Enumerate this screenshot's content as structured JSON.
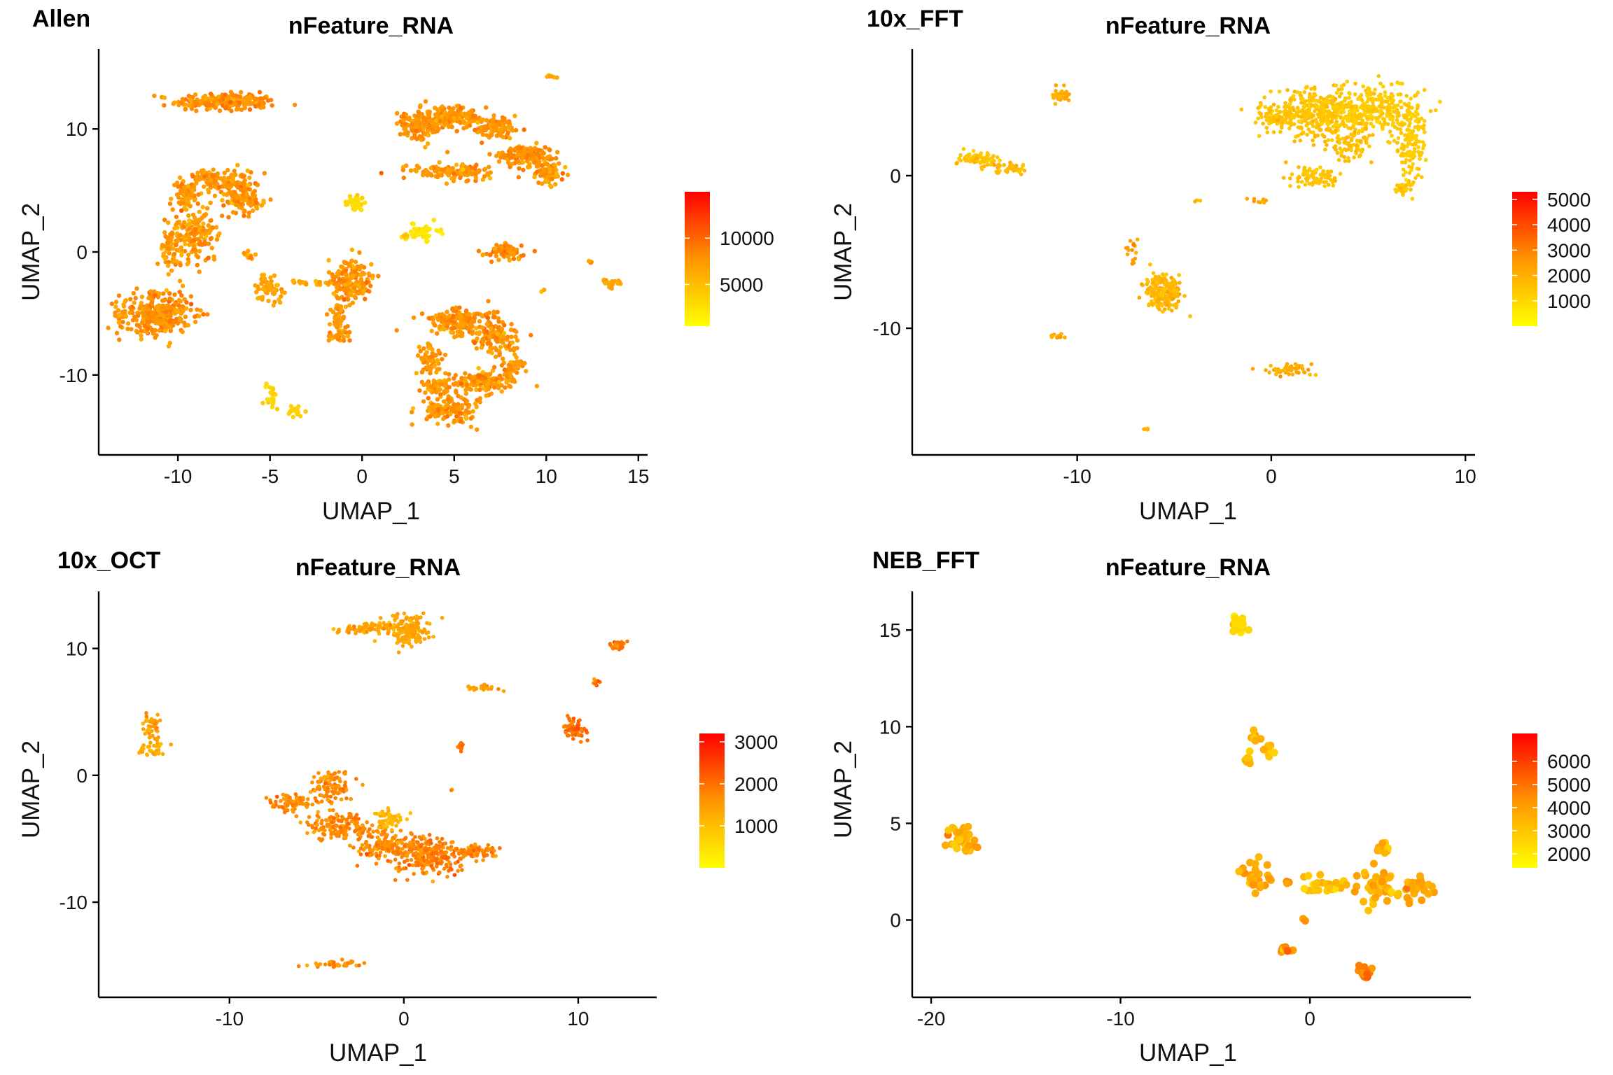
{
  "colors": {
    "low": "#ffff00",
    "mid": "#ff9500",
    "high": "#ff0000",
    "axis": "#000000",
    "background": "#ffffff"
  },
  "chart_data": [
    {
      "type": "scatter",
      "panel_label": "Allen",
      "title": "nFeature_RNA",
      "xlabel": "UMAP_1",
      "ylabel": "UMAP_2",
      "xlim": [
        -14.3,
        15.5
      ],
      "ylim": [
        -16.5,
        16.5
      ],
      "xticks": [
        -10,
        -5,
        0,
        5,
        10,
        15
      ],
      "yticks": [
        -10,
        0,
        10
      ],
      "color_scale": {
        "min": 500,
        "max": 15000,
        "ticks": [
          10000,
          5000
        ],
        "colors": [
          "#ffff00",
          "#ff9500",
          "#ff0000"
        ]
      },
      "clusters": [
        {
          "cx": -7.4,
          "cy": 12.2,
          "sx": 1.8,
          "sy": 0.45,
          "n": 260,
          "value": 7800
        },
        {
          "cx": -8.0,
          "cy": 5.8,
          "sx": 1.2,
          "sy": 0.6,
          "n": 120,
          "value": 7600
        },
        {
          "cx": -6.5,
          "cy": 4.4,
          "sx": 0.7,
          "sy": 1.0,
          "n": 110,
          "value": 7700
        },
        {
          "cx": -9.5,
          "cy": 4.6,
          "sx": 0.5,
          "sy": 0.8,
          "n": 60,
          "value": 7500
        },
        {
          "cx": -9.0,
          "cy": 1.5,
          "sx": 0.9,
          "sy": 1.5,
          "n": 150,
          "value": 7600
        },
        {
          "cx": -10.3,
          "cy": 0.2,
          "sx": 0.5,
          "sy": 1.4,
          "n": 60,
          "value": 7400
        },
        {
          "cx": -11.2,
          "cy": -5.0,
          "sx": 1.3,
          "sy": 1.2,
          "n": 330,
          "value": 7900
        },
        {
          "cx": -6.1,
          "cy": -0.3,
          "sx": 0.25,
          "sy": 0.2,
          "n": 12,
          "value": 7000
        },
        {
          "cx": -5.0,
          "cy": -3.0,
          "sx": 0.5,
          "sy": 0.6,
          "n": 60,
          "value": 6800
        },
        {
          "cx": -2.7,
          "cy": -2.5,
          "sx": 0.9,
          "sy": 0.15,
          "n": 25,
          "value": 6500
        },
        {
          "cx": -0.6,
          "cy": -2.2,
          "sx": 0.8,
          "sy": 1.1,
          "n": 170,
          "value": 7700
        },
        {
          "cx": -1.3,
          "cy": -5.5,
          "sx": 0.35,
          "sy": 1.1,
          "n": 60,
          "value": 7500
        },
        {
          "cx": -1.0,
          "cy": -6.8,
          "sx": 0.4,
          "sy": 0.3,
          "n": 20,
          "value": 7400
        },
        {
          "cx": -4.9,
          "cy": -11.6,
          "sx": 0.25,
          "sy": 0.8,
          "n": 22,
          "value": 3500
        },
        {
          "cx": -3.7,
          "cy": -12.9,
          "sx": 0.5,
          "sy": 0.3,
          "n": 16,
          "value": 4000
        },
        {
          "cx": -0.4,
          "cy": 4.0,
          "sx": 0.35,
          "sy": 0.45,
          "n": 40,
          "value": 3200
        },
        {
          "cx": 3.3,
          "cy": 1.6,
          "sx": 0.6,
          "sy": 0.45,
          "n": 50,
          "value": 2200
        },
        {
          "cx": 2.3,
          "cy": 1.3,
          "sx": 0.12,
          "sy": 0.12,
          "n": 6,
          "value": 4000
        },
        {
          "cx": 3.2,
          "cy": 10.2,
          "sx": 0.8,
          "sy": 0.9,
          "n": 140,
          "value": 7800
        },
        {
          "cx": 5.0,
          "cy": 10.9,
          "sx": 1.2,
          "sy": 0.5,
          "n": 170,
          "value": 7700
        },
        {
          "cx": 7.2,
          "cy": 10.0,
          "sx": 0.8,
          "sy": 0.5,
          "n": 90,
          "value": 7800
        },
        {
          "cx": 8.8,
          "cy": 7.9,
          "sx": 1.0,
          "sy": 0.5,
          "n": 140,
          "value": 7700
        },
        {
          "cx": 10.0,
          "cy": 6.5,
          "sx": 0.6,
          "sy": 0.6,
          "n": 80,
          "value": 7600
        },
        {
          "cx": 5.0,
          "cy": 6.5,
          "sx": 1.5,
          "sy": 0.4,
          "n": 120,
          "value": 7700
        },
        {
          "cx": 10.2,
          "cy": 14.3,
          "sx": 0.2,
          "sy": 0.15,
          "n": 6,
          "value": 6500
        },
        {
          "cx": 7.8,
          "cy": 0.0,
          "sx": 0.8,
          "sy": 0.4,
          "n": 70,
          "value": 8000
        },
        {
          "cx": 12.4,
          "cy": -0.8,
          "sx": 0.12,
          "sy": 0.1,
          "n": 4,
          "value": 7000
        },
        {
          "cx": 13.6,
          "cy": -2.5,
          "sx": 0.35,
          "sy": 0.3,
          "n": 25,
          "value": 6500
        },
        {
          "cx": 9.8,
          "cy": -3.1,
          "sx": 0.06,
          "sy": 0.06,
          "n": 2,
          "value": 6000
        },
        {
          "cx": 5.4,
          "cy": -5.6,
          "sx": 1.3,
          "sy": 0.7,
          "n": 160,
          "value": 7800
        },
        {
          "cx": 7.2,
          "cy": -7.0,
          "sx": 0.8,
          "sy": 0.9,
          "n": 110,
          "value": 7700
        },
        {
          "cx": 3.7,
          "cy": -8.7,
          "sx": 0.45,
          "sy": 0.9,
          "n": 60,
          "value": 7600
        },
        {
          "cx": 6.5,
          "cy": -10.5,
          "sx": 1.3,
          "sy": 0.6,
          "n": 150,
          "value": 7800
        },
        {
          "cx": 4.8,
          "cy": -12.8,
          "sx": 1.0,
          "sy": 0.8,
          "n": 130,
          "value": 7700
        },
        {
          "cx": 8.2,
          "cy": -9.3,
          "sx": 0.4,
          "sy": 0.6,
          "n": 40,
          "value": 7600
        },
        {
          "cx": 4.0,
          "cy": -11.0,
          "sx": 0.5,
          "sy": 0.5,
          "n": 50,
          "value": 7500
        }
      ]
    },
    {
      "type": "scatter",
      "panel_label": "10x_FFT",
      "title": "nFeature_RNA",
      "xlabel": "UMAP_1",
      "ylabel": "UMAP_2",
      "xlim": [
        -18.5,
        10.5
      ],
      "ylim": [
        -18.3,
        8.3
      ],
      "xticks": [
        -10,
        0,
        10
      ],
      "yticks": [
        -10,
        0
      ],
      "color_scale": {
        "min": 0,
        "max": 5300,
        "ticks": [
          5000,
          4000,
          3000,
          2000,
          1000
        ],
        "colors": [
          "#ffff00",
          "#ff9500",
          "#ff0000"
        ]
      },
      "clusters": [
        {
          "cx": 2.3,
          "cy": 4.1,
          "sx": 1.6,
          "sy": 1.0,
          "n": 330,
          "value": 1500
        },
        {
          "cx": 5.3,
          "cy": 4.3,
          "sx": 1.6,
          "sy": 1.0,
          "n": 300,
          "value": 1300
        },
        {
          "cx": 7.2,
          "cy": 2.0,
          "sx": 0.5,
          "sy": 1.6,
          "n": 110,
          "value": 1300
        },
        {
          "cx": 4.0,
          "cy": 2.0,
          "sx": 0.8,
          "sy": 0.8,
          "n": 80,
          "value": 1600
        },
        {
          "cx": 2.3,
          "cy": 0.0,
          "sx": 0.8,
          "sy": 0.5,
          "n": 80,
          "value": 1500
        },
        {
          "cx": 6.8,
          "cy": -0.8,
          "sx": 0.4,
          "sy": 0.3,
          "n": 30,
          "value": 1400
        },
        {
          "cx": 0.2,
          "cy": 3.8,
          "sx": 0.6,
          "sy": 0.5,
          "n": 60,
          "value": 1500
        },
        {
          "cx": -10.9,
          "cy": 5.2,
          "sx": 0.35,
          "sy": 0.3,
          "n": 35,
          "value": 2100
        },
        {
          "cx": -15.2,
          "cy": 1.1,
          "sx": 0.7,
          "sy": 0.35,
          "n": 70,
          "value": 1500
        },
        {
          "cx": -13.3,
          "cy": 0.5,
          "sx": 0.6,
          "sy": 0.25,
          "n": 40,
          "value": 1700
        },
        {
          "cx": -3.8,
          "cy": -1.7,
          "sx": 0.1,
          "sy": 0.08,
          "n": 3,
          "value": 1800
        },
        {
          "cx": -0.6,
          "cy": -1.6,
          "sx": 0.3,
          "sy": 0.12,
          "n": 10,
          "value": 2300
        },
        {
          "cx": -7.1,
          "cy": -5.0,
          "sx": 0.25,
          "sy": 0.6,
          "n": 15,
          "value": 2400
        },
        {
          "cx": -5.6,
          "cy": -7.6,
          "sx": 0.7,
          "sy": 0.75,
          "n": 200,
          "value": 1800
        },
        {
          "cx": -11.0,
          "cy": -10.5,
          "sx": 0.3,
          "sy": 0.12,
          "n": 12,
          "value": 2000
        },
        {
          "cx": 0.9,
          "cy": -12.7,
          "sx": 0.8,
          "sy": 0.25,
          "n": 50,
          "value": 2100
        },
        {
          "cx": -6.5,
          "cy": -16.6,
          "sx": 0.12,
          "sy": 0.12,
          "n": 5,
          "value": 1800
        }
      ]
    },
    {
      "type": "scatter",
      "panel_label": "10x_OCT",
      "title": "nFeature_RNA",
      "xlabel": "UMAP_1",
      "ylabel": "UMAP_2",
      "xlim": [
        -17.5,
        14.5
      ],
      "ylim": [
        -17.5,
        14.5
      ],
      "xticks": [
        -10,
        0,
        10
      ],
      "yticks": [
        -10,
        0,
        10
      ],
      "color_scale": {
        "min": 0,
        "max": 3200,
        "ticks": [
          3000,
          2000,
          1000
        ],
        "colors": [
          "#ffff00",
          "#ff9500",
          "#ff0000"
        ]
      },
      "clusters": [
        {
          "cx": -14.5,
          "cy": 4.0,
          "sx": 0.35,
          "sy": 0.6,
          "n": 40,
          "value": 1400
        },
        {
          "cx": -14.4,
          "cy": 2.1,
          "sx": 0.45,
          "sy": 0.4,
          "n": 35,
          "value": 1300
        },
        {
          "cx": 0.3,
          "cy": 11.4,
          "sx": 0.8,
          "sy": 0.7,
          "n": 150,
          "value": 1400
        },
        {
          "cx": -1.6,
          "cy": 11.6,
          "sx": 1.0,
          "sy": 0.3,
          "n": 60,
          "value": 1400
        },
        {
          "cx": -3.0,
          "cy": 11.5,
          "sx": 0.6,
          "sy": 0.2,
          "n": 20,
          "value": 1500
        },
        {
          "cx": 4.5,
          "cy": 6.9,
          "sx": 0.6,
          "sy": 0.15,
          "n": 25,
          "value": 1500
        },
        {
          "cx": 12.3,
          "cy": 10.3,
          "sx": 0.35,
          "sy": 0.35,
          "n": 30,
          "value": 1900
        },
        {
          "cx": 11.0,
          "cy": 7.3,
          "sx": 0.15,
          "sy": 0.18,
          "n": 10,
          "value": 2000
        },
        {
          "cx": 9.8,
          "cy": 3.7,
          "sx": 0.4,
          "sy": 0.5,
          "n": 70,
          "value": 2000
        },
        {
          "cx": 3.3,
          "cy": 2.2,
          "sx": 0.2,
          "sy": 0.25,
          "n": 12,
          "value": 2000
        },
        {
          "cx": 2.8,
          "cy": -1.2,
          "sx": 0.08,
          "sy": 0.08,
          "n": 2,
          "value": 1500
        },
        {
          "cx": -4.2,
          "cy": -0.8,
          "sx": 0.8,
          "sy": 0.9,
          "n": 110,
          "value": 1700
        },
        {
          "cx": -6.5,
          "cy": -2.2,
          "sx": 0.7,
          "sy": 0.5,
          "n": 70,
          "value": 1700
        },
        {
          "cx": -3.8,
          "cy": -4.0,
          "sx": 1.2,
          "sy": 0.7,
          "n": 150,
          "value": 1700
        },
        {
          "cx": -1.0,
          "cy": -5.5,
          "sx": 1.2,
          "sy": 0.8,
          "n": 170,
          "value": 1700
        },
        {
          "cx": 1.5,
          "cy": -6.4,
          "sx": 1.3,
          "sy": 0.9,
          "n": 220,
          "value": 1800
        },
        {
          "cx": 4.2,
          "cy": -6.0,
          "sx": 0.9,
          "sy": 0.4,
          "n": 70,
          "value": 1800
        },
        {
          "cx": -0.8,
          "cy": -3.3,
          "sx": 0.5,
          "sy": 0.5,
          "n": 50,
          "value": 1100
        },
        {
          "cx": -4.0,
          "cy": -14.9,
          "sx": 1.2,
          "sy": 0.18,
          "n": 35,
          "value": 1600
        }
      ]
    },
    {
      "type": "scatter",
      "panel_label": "NEB_FFT",
      "title": "nFeature_RNA",
      "xlabel": "UMAP_1",
      "ylabel": "UMAP_2",
      "xlim": [
        -21.0,
        8.5
      ],
      "ylim": [
        -4.0,
        17.0
      ],
      "xticks": [
        -20,
        -10,
        0
      ],
      "yticks": [
        0,
        5,
        10,
        15
      ],
      "color_scale": {
        "min": 1400,
        "max": 7200,
        "ticks": [
          6000,
          5000,
          4000,
          3000,
          2000
        ],
        "colors": [
          "#ffff00",
          "#ff9500",
          "#ff0000"
        ]
      },
      "clusters": [
        {
          "cx": -18.3,
          "cy": 4.1,
          "sx": 0.55,
          "sy": 0.5,
          "n": 35,
          "value": 3600
        },
        {
          "cx": -3.7,
          "cy": 15.2,
          "sx": 0.3,
          "sy": 0.3,
          "n": 22,
          "value": 2500
        },
        {
          "cx": -2.8,
          "cy": 9.5,
          "sx": 0.25,
          "sy": 0.3,
          "n": 10,
          "value": 3400
        },
        {
          "cx": -3.3,
          "cy": 8.4,
          "sx": 0.2,
          "sy": 0.25,
          "n": 8,
          "value": 3000
        },
        {
          "cx": -2.2,
          "cy": 8.7,
          "sx": 0.25,
          "sy": 0.3,
          "n": 10,
          "value": 3000
        },
        {
          "cx": -2.8,
          "cy": 2.3,
          "sx": 0.45,
          "sy": 0.6,
          "n": 35,
          "value": 3800
        },
        {
          "cx": -1.2,
          "cy": 1.9,
          "sx": 0.1,
          "sy": 0.1,
          "n": 3,
          "value": 4000
        },
        {
          "cx": 0.8,
          "cy": 1.8,
          "sx": 0.9,
          "sy": 0.35,
          "n": 30,
          "value": 3000
        },
        {
          "cx": 3.5,
          "cy": 1.5,
          "sx": 0.9,
          "sy": 0.55,
          "n": 40,
          "value": 3500
        },
        {
          "cx": 5.6,
          "cy": 1.6,
          "sx": 0.6,
          "sy": 0.4,
          "n": 25,
          "value": 3800
        },
        {
          "cx": 3.9,
          "cy": 3.6,
          "sx": 0.25,
          "sy": 0.5,
          "n": 12,
          "value": 3600
        },
        {
          "cx": -1.3,
          "cy": -1.5,
          "sx": 0.25,
          "sy": 0.2,
          "n": 12,
          "value": 4200
        },
        {
          "cx": 3.0,
          "cy": -2.6,
          "sx": 0.25,
          "sy": 0.2,
          "n": 14,
          "value": 4600
        },
        {
          "cx": -0.3,
          "cy": 0.0,
          "sx": 0.08,
          "sy": 0.08,
          "n": 2,
          "value": 4000
        }
      ]
    }
  ]
}
